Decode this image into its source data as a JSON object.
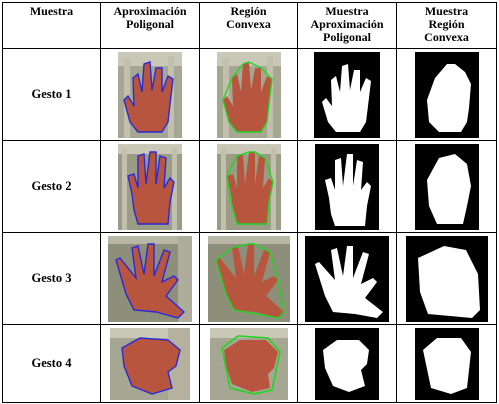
{
  "headers": [
    {
      "line1": "Muestra",
      "line2": "",
      "line3": ""
    },
    {
      "line1": "Aproximación",
      "line2": "Poligonal",
      "line3": ""
    },
    {
      "line1": "Región",
      "line2": "Convexa",
      "line3": ""
    },
    {
      "line1": "Muestra",
      "line2": "Aproximación",
      "line3": "Poligonal"
    },
    {
      "line1": "Muestra",
      "line2": "Región",
      "line3": "Convexa"
    }
  ],
  "rows": [
    {
      "label": "Gesto 1"
    },
    {
      "label": "Gesto 2"
    },
    {
      "label": "Gesto 3"
    },
    {
      "label": "Gesto 4"
    }
  ],
  "colors": {
    "skin": "#b8553e",
    "skin_dark": "#8e3b2a",
    "poly_outline": "#2a2ad6",
    "hull_outline": "#22d422",
    "mask_bg": "#000000",
    "mask_fg": "#ffffff",
    "photo_bg": "#9a9c86"
  }
}
